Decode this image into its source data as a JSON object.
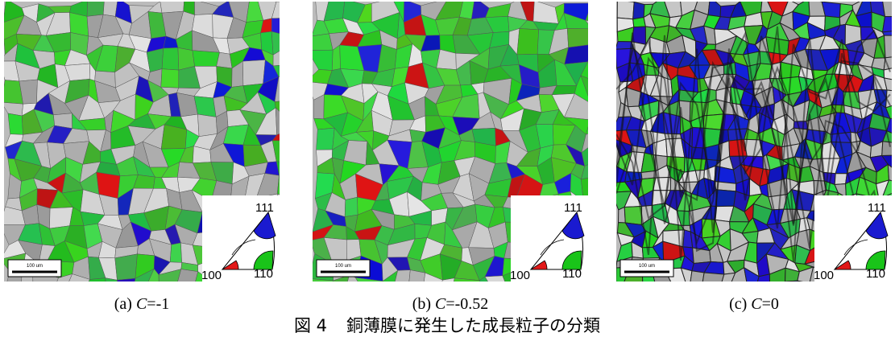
{
  "panels": [
    {
      "label": "(a)",
      "variable": "C",
      "value": "=-1",
      "scale_bar": "100 um",
      "legend": {
        "top": "111",
        "left": "100",
        "right": "110"
      }
    },
    {
      "label": "(b)",
      "variable": "C",
      "value": "=-0.52",
      "scale_bar": "100 um",
      "legend": {
        "top": "111",
        "left": "100",
        "right": "110"
      }
    },
    {
      "label": "(c)",
      "variable": "C",
      "value": "=0",
      "scale_bar": "100 um",
      "legend": {
        "top": "111",
        "left": "100",
        "right": "110"
      }
    }
  ],
  "figure": {
    "number": "図 4",
    "title": "銅薄膜に発生した成長粒子の分類"
  }
}
